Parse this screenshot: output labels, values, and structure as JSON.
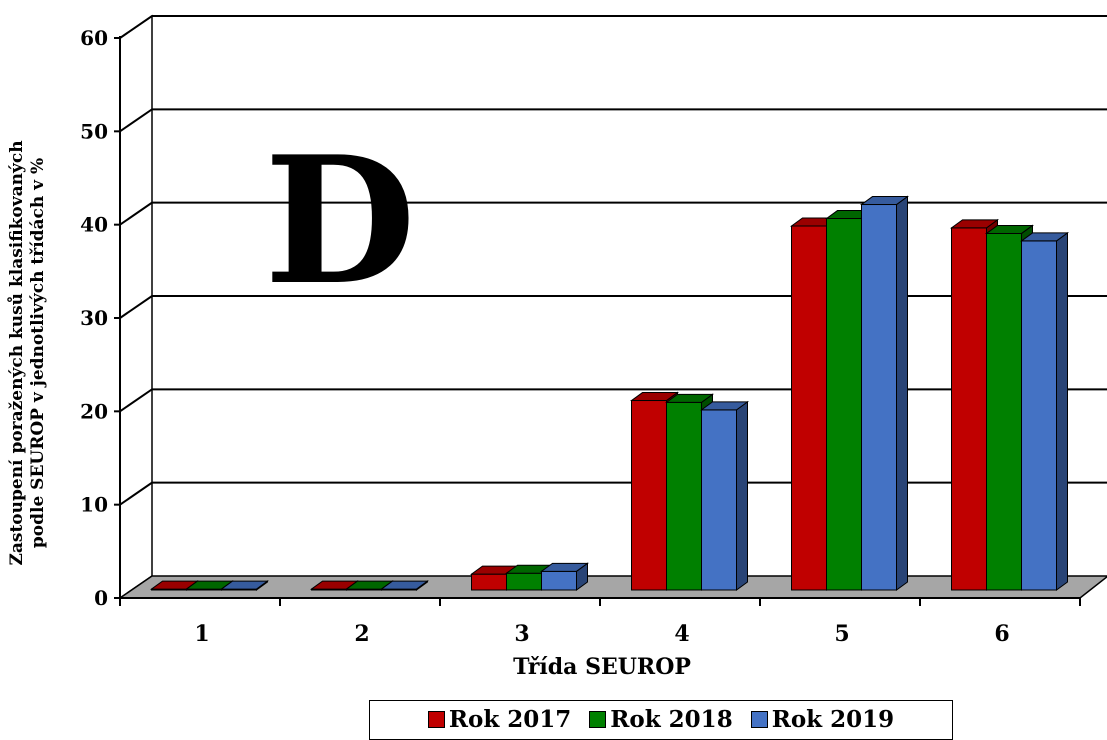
{
  "chart_data": {
    "type": "bar",
    "title": "",
    "xlabel": "Třída SEUROP",
    "ylabel_line1": "Zastoupení poražených kusů klasifikovaných",
    "ylabel_line2": "podle SEUROP v jednotlivých třídách v %",
    "annotation": "D",
    "categories": [
      "1",
      "2",
      "3",
      "4",
      "5",
      "6"
    ],
    "ylim": [
      0,
      60
    ],
    "yticks": [
      "0",
      "10",
      "20",
      "30",
      "40",
      "50",
      "60"
    ],
    "grid": true,
    "legend_position": "bottom",
    "series": [
      {
        "name": "Rok 2017",
        "color": "#c00000",
        "values": [
          0.1,
          0.1,
          1.7,
          20.3,
          39.0,
          38.8
        ]
      },
      {
        "name": "Rok 2018",
        "color": "#008000",
        "values": [
          0.1,
          0.1,
          1.8,
          20.1,
          39.8,
          38.2
        ]
      },
      {
        "name": "Rok 2019",
        "color": "#4472c4",
        "values": [
          0.1,
          0.1,
          2.0,
          19.3,
          41.3,
          37.4
        ]
      }
    ]
  }
}
